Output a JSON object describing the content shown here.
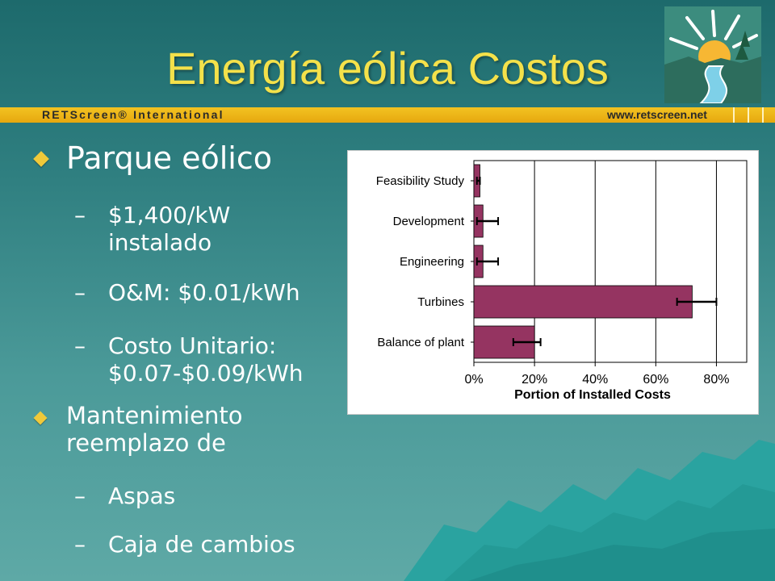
{
  "slide": {
    "title": "Energía eólica Costos",
    "brand": "RETScreen® International",
    "url": "www.retscreen.net"
  },
  "bullets": [
    {
      "text": "Parque eólico"
    },
    {
      "text": "$1,400/kW"
    },
    {
      "text": "instalado"
    },
    {
      "text": "O&M: $0.01/kWh"
    },
    {
      "text": "Costo Unitario:"
    },
    {
      "text": "$0.07-$0.09/kWh"
    },
    {
      "text": "Mantenimiento"
    },
    {
      "text": "reemplazo de"
    },
    {
      "text": "Aspas"
    },
    {
      "text": "Caja de cambios"
    }
  ],
  "chart_data": {
    "type": "bar",
    "orientation": "horizontal",
    "categories": [
      "Feasibility Study",
      "Development",
      "Engineering",
      "Turbines",
      "Balance of plant"
    ],
    "values": [
      2,
      3,
      3,
      72,
      20
    ],
    "error_low": [
      1,
      1,
      1,
      67,
      13
    ],
    "error_high": [
      2,
      8,
      8,
      80,
      22
    ],
    "xlabel": "Portion of Installed Costs",
    "ylabel": "",
    "xlim": [
      0,
      90
    ],
    "xticks": [
      "0%",
      "20%",
      "40%",
      "60%",
      "80%"
    ],
    "xtick_values": [
      0,
      20,
      40,
      60,
      80
    ],
    "bar_color": "#953461",
    "grid": "vertical"
  },
  "colors": {
    "title": "#f4e14a",
    "accent": "#f0c93a",
    "bar": "#953461"
  }
}
